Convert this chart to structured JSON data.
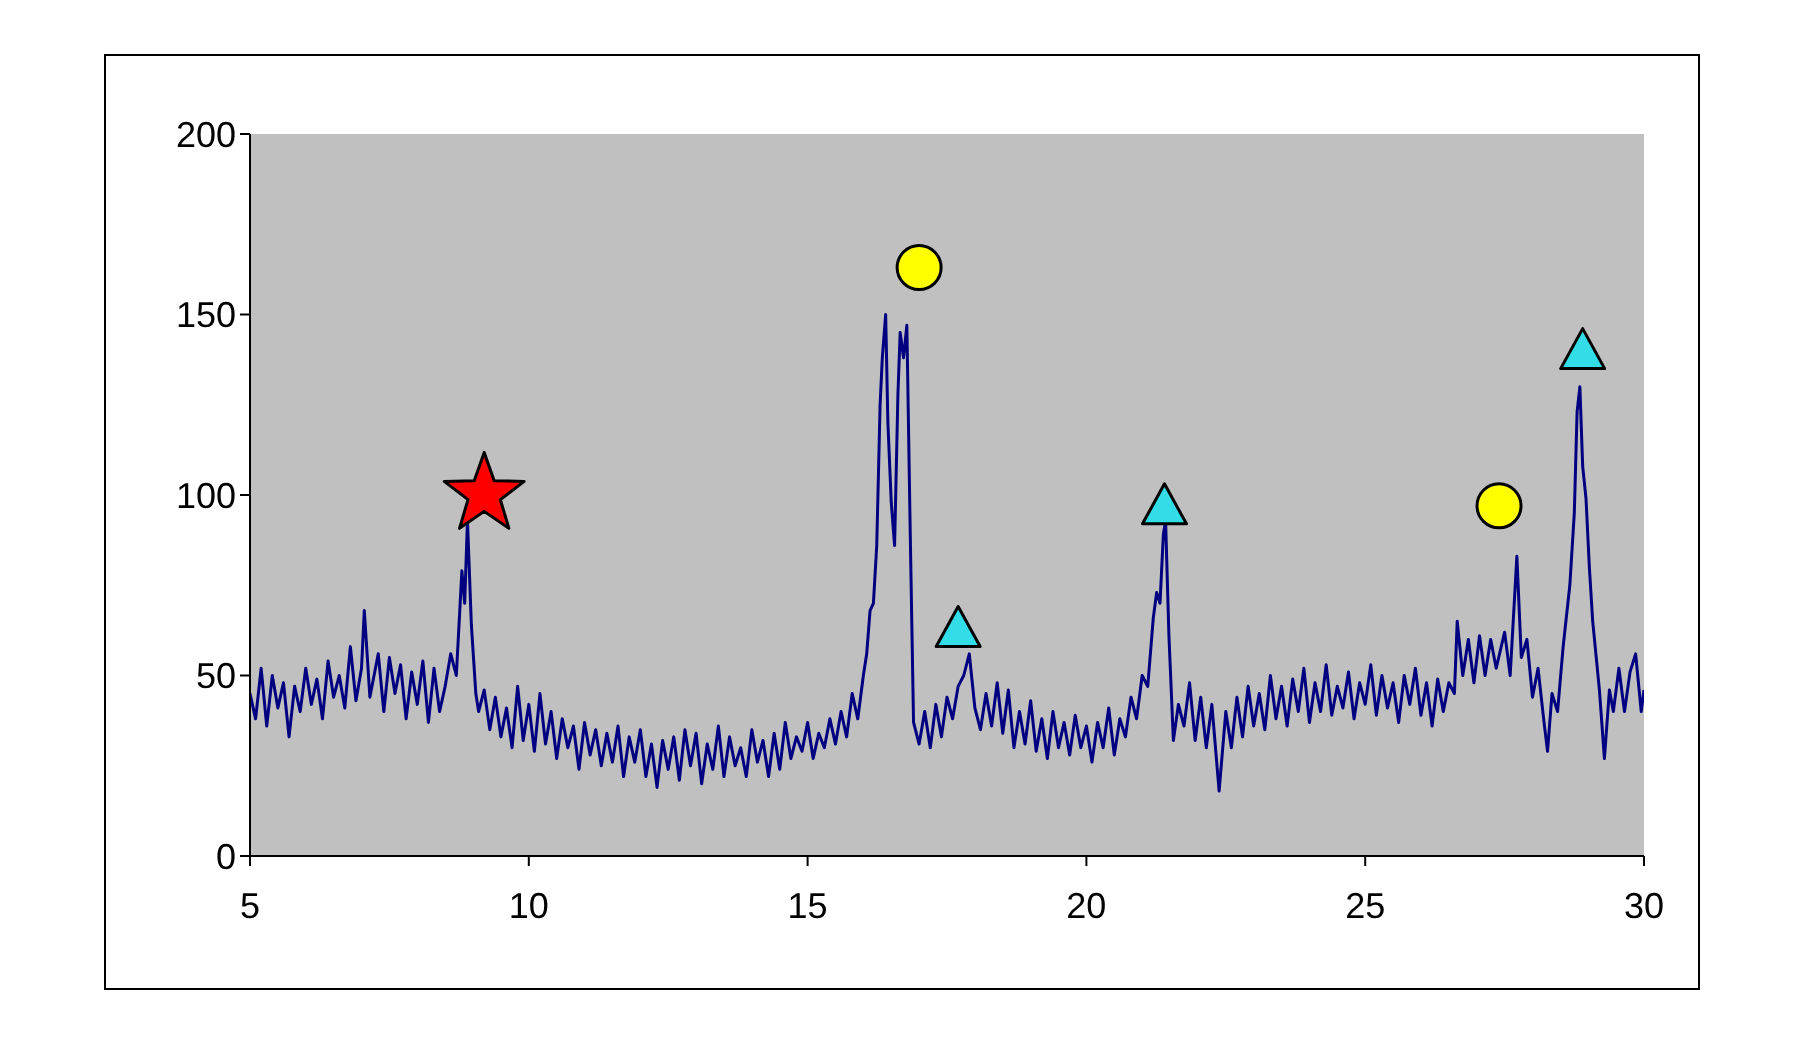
{
  "chart_data": {
    "type": "line",
    "xlim": [
      5,
      30
    ],
    "xticks": [
      5,
      10,
      15,
      20,
      25,
      30
    ],
    "ylim": [
      0,
      200
    ],
    "yticks": [
      0,
      50,
      100,
      150,
      200
    ],
    "series": [
      {
        "color": "#000080",
        "x": [
          5.0,
          5.1,
          5.2,
          5.3,
          5.4,
          5.5,
          5.6,
          5.7,
          5.8,
          5.9,
          6.0,
          6.1,
          6.2,
          6.3,
          6.4,
          6.5,
          6.6,
          6.7,
          6.8,
          6.9,
          7.0,
          7.05,
          7.15,
          7.3,
          7.4,
          7.5,
          7.6,
          7.7,
          7.8,
          7.9,
          8.0,
          8.1,
          8.2,
          8.3,
          8.4,
          8.5,
          8.6,
          8.7,
          8.8,
          8.85,
          8.9,
          8.97,
          9.05,
          9.1,
          9.2,
          9.3,
          9.4,
          9.5,
          9.6,
          9.7,
          9.8,
          9.9,
          10.0,
          10.1,
          10.2,
          10.3,
          10.4,
          10.5,
          10.6,
          10.7,
          10.8,
          10.9,
          11.0,
          11.1,
          11.2,
          11.3,
          11.4,
          11.5,
          11.6,
          11.7,
          11.8,
          11.9,
          12.0,
          12.1,
          12.2,
          12.3,
          12.4,
          12.5,
          12.6,
          12.7,
          12.8,
          12.9,
          13.0,
          13.1,
          13.2,
          13.3,
          13.4,
          13.5,
          13.6,
          13.7,
          13.8,
          13.9,
          14.0,
          14.1,
          14.2,
          14.3,
          14.4,
          14.5,
          14.6,
          14.7,
          14.8,
          14.9,
          15.0,
          15.1,
          15.2,
          15.3,
          15.4,
          15.5,
          15.6,
          15.7,
          15.8,
          15.9,
          16.0,
          16.06,
          16.12,
          16.18,
          16.24,
          16.3,
          16.34,
          16.4,
          16.44,
          16.5,
          16.56,
          16.62,
          16.66,
          16.72,
          16.78,
          16.84,
          16.9,
          17.0,
          17.1,
          17.2,
          17.3,
          17.4,
          17.5,
          17.6,
          17.7,
          17.8,
          17.9,
          18.0,
          18.1,
          18.2,
          18.3,
          18.4,
          18.5,
          18.6,
          18.7,
          18.8,
          18.9,
          19.0,
          19.1,
          19.2,
          19.3,
          19.4,
          19.5,
          19.6,
          19.7,
          19.8,
          19.9,
          20.0,
          20.1,
          20.2,
          20.3,
          20.4,
          20.5,
          20.6,
          20.7,
          20.8,
          20.9,
          21.0,
          21.1,
          21.2,
          21.26,
          21.32,
          21.38,
          21.42,
          21.48,
          21.56,
          21.65,
          21.75,
          21.85,
          21.95,
          22.05,
          22.15,
          22.25,
          22.38,
          22.5,
          22.6,
          22.7,
          22.8,
          22.9,
          23.0,
          23.1,
          23.2,
          23.3,
          23.4,
          23.5,
          23.6,
          23.7,
          23.8,
          23.9,
          24.0,
          24.1,
          24.2,
          24.3,
          24.4,
          24.5,
          24.6,
          24.7,
          24.8,
          24.9,
          25.0,
          25.1,
          25.2,
          25.3,
          25.4,
          25.5,
          25.6,
          25.7,
          25.8,
          25.9,
          26.0,
          26.1,
          26.2,
          26.3,
          26.4,
          26.5,
          26.6,
          26.65,
          26.75,
          26.85,
          26.95,
          27.05,
          27.15,
          27.25,
          27.35,
          27.5,
          27.6,
          27.72,
          27.8,
          27.9,
          28.0,
          28.1,
          28.2,
          28.27,
          28.35,
          28.45,
          28.55,
          28.67,
          28.75,
          28.8,
          28.85,
          28.9,
          28.96,
          29.02,
          29.08,
          29.15,
          29.2,
          29.29,
          29.38,
          29.45,
          29.55,
          29.65,
          29.75,
          29.85,
          29.95,
          30.0
        ],
        "values": [
          45,
          38,
          52,
          36,
          50,
          41,
          48,
          33,
          47,
          40,
          52,
          42,
          49,
          38,
          54,
          44,
          50,
          41,
          58,
          43,
          52,
          68,
          44,
          56,
          40,
          55,
          45,
          53,
          38,
          51,
          42,
          54,
          37,
          52,
          40,
          47,
          56,
          50,
          79,
          70,
          93,
          64,
          45,
          40,
          46,
          35,
          44,
          33,
          41,
          30,
          47,
          32,
          42,
          29,
          45,
          31,
          40,
          27,
          38,
          30,
          36,
          24,
          37,
          28,
          35,
          25,
          34,
          26,
          36,
          22,
          33,
          26,
          35,
          22,
          31,
          19,
          32,
          24,
          33,
          21,
          35,
          25,
          34,
          20,
          31,
          24,
          36,
          22,
          33,
          25,
          30,
          22,
          35,
          26,
          32,
          22,
          34,
          24,
          37,
          27,
          33,
          29,
          37,
          27,
          34,
          30,
          38,
          31,
          40,
          33,
          45,
          38,
          50,
          56,
          68,
          70,
          86,
          125,
          138,
          150,
          120,
          98,
          86,
          128,
          145,
          138,
          147,
          90,
          37,
          31,
          40,
          30,
          42,
          33,
          44,
          38,
          47,
          50,
          56,
          41,
          35,
          45,
          36,
          48,
          34,
          46,
          30,
          40,
          31,
          43,
          29,
          38,
          27,
          40,
          30,
          37,
          28,
          39,
          30,
          36,
          26,
          37,
          30,
          41,
          28,
          38,
          33,
          44,
          38,
          50,
          47,
          66,
          73,
          70,
          89,
          93,
          61,
          32,
          42,
          36,
          48,
          32,
          44,
          30,
          42,
          18,
          40,
          30,
          44,
          33,
          47,
          36,
          45,
          35,
          50,
          38,
          47,
          36,
          49,
          40,
          52,
          37,
          48,
          40,
          53,
          39,
          47,
          41,
          51,
          38,
          48,
          42,
          53,
          39,
          50,
          41,
          48,
          37,
          50,
          42,
          52,
          39,
          48,
          36,
          49,
          40,
          48,
          45,
          65,
          50,
          60,
          48,
          61,
          50,
          60,
          52,
          62,
          50,
          83,
          55,
          60,
          44,
          52,
          38,
          29,
          45,
          40,
          58,
          75,
          95,
          123,
          130,
          108,
          99,
          80,
          65,
          54,
          46,
          27,
          46,
          40,
          52,
          40,
          51,
          56,
          40,
          46
        ]
      },
      {
        "type": "scatter",
        "marker": "star",
        "color": "#ff0000",
        "x": [
          9.2
        ],
        "values": [
          101
        ]
      },
      {
        "type": "scatter",
        "marker": "circle",
        "color": "#ffff00",
        "x": [
          17.0,
          27.4
        ],
        "values": [
          163,
          97
        ]
      },
      {
        "type": "scatter",
        "marker": "triangle",
        "color": "#33dde8",
        "x": [
          17.7,
          21.4,
          28.9
        ],
        "values": [
          63,
          97,
          140
        ]
      }
    ]
  }
}
